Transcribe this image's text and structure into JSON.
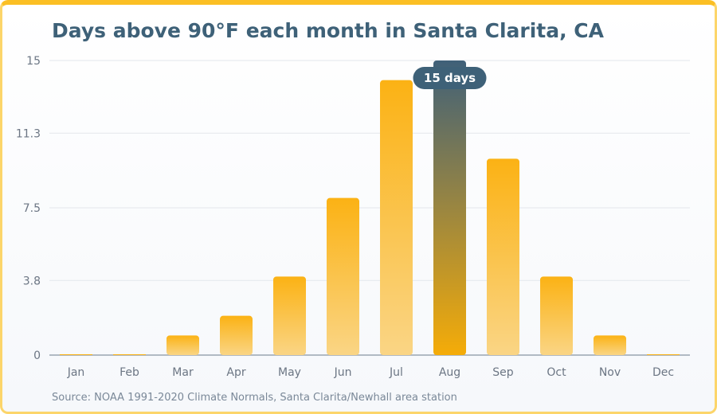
{
  "title": "Days above 90°F each month in Santa Clarita, CA",
  "source": "Source: NOAA 1991-2020 Climate Normals, Santa Clarita/Newhall area station",
  "tooltip": {
    "label": "15 days",
    "category": "Aug"
  },
  "colors": {
    "bar_top": "#fbb214",
    "bar_bottom": "#fad585",
    "highlight_top": "#3f6079",
    "highlight_bottom": "#f5ac08",
    "grid": "#e3e7ec",
    "axis": "#9aa5b1",
    "tooltip_bg": "#3e6178"
  },
  "chart_data": {
    "type": "bar",
    "title": "Days above 90°F each month in Santa Clarita, CA",
    "categories": [
      "Jan",
      "Feb",
      "Mar",
      "Apr",
      "May",
      "Jun",
      "Jul",
      "Aug",
      "Sep",
      "Oct",
      "Nov",
      "Dec"
    ],
    "values": [
      0,
      0,
      1,
      2,
      4,
      8,
      14,
      15,
      10,
      4,
      1,
      0
    ],
    "highlight": "Aug",
    "y_ticks": [
      "0",
      "3.8",
      "7.5",
      "11.3",
      "15"
    ],
    "ylim": [
      0,
      15
    ],
    "grid": true,
    "xlabel": "",
    "ylabel": ""
  }
}
